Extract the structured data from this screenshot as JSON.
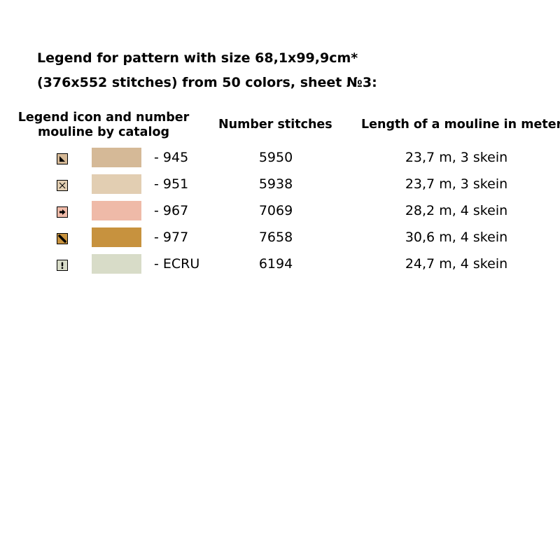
{
  "title": {
    "line1": "Legend for pattern with size 68,1x99,9cm*",
    "line2": "(376x552 stitches) from 50 colors, sheet №3:"
  },
  "headers": {
    "legend_line1": "Legend icon and number",
    "legend_line2": "mouline by catalog",
    "count": "Number stitches",
    "length": "Length of a mouline in meter"
  },
  "rows": [
    {
      "icon": "triangle-icon",
      "swatch": "#d5b997",
      "code": "- 945",
      "count": "5950",
      "length": "23,7 m, 3 skein"
    },
    {
      "icon": "cross-icon",
      "swatch": "#e2ceb2",
      "code": "- 951",
      "count": "5938",
      "length": "23,7 m, 3 skein"
    },
    {
      "icon": "arrow-right-icon",
      "swatch": "#efbaa8",
      "code": "- 967",
      "count": "7069",
      "length": "28,2 m, 4 skein"
    },
    {
      "icon": "diagonal-bar-icon",
      "swatch": "#c7923e",
      "code": "- 977",
      "count": "7658",
      "length": "30,6 m, 4 skein"
    },
    {
      "icon": "exclamation-icon",
      "swatch": "#d8dcc8",
      "code": "- ECRU",
      "count": "6194",
      "length": "24,7 m, 4 skein"
    }
  ]
}
